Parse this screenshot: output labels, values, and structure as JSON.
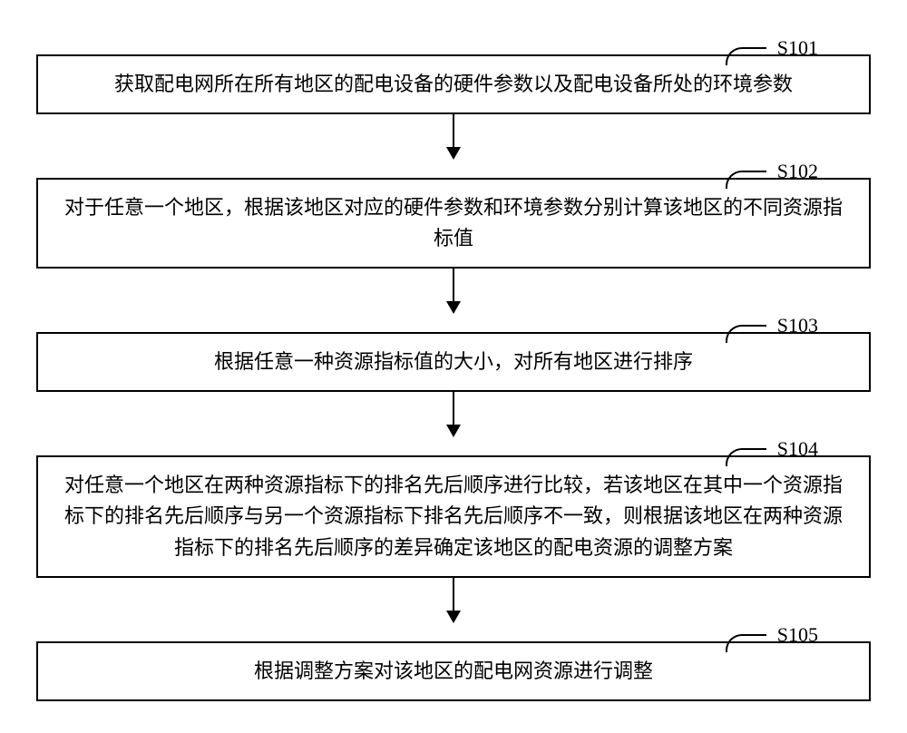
{
  "diagram": {
    "type": "flowchart",
    "direction": "vertical",
    "background_color": "#ffffff",
    "border_color": "#000000",
    "text_color": "#000000",
    "font_family": "SimSun",
    "label_font_family": "Times New Roman",
    "font_size_pt": 16,
    "label_font_size_pt": 16,
    "box_border_width": 2,
    "arrow_line_width": 2,
    "steps": [
      {
        "id": "S101",
        "label": "S101",
        "text": "获取配电网所在所有地区的配电设备的硬件参数以及配电设备所处的环境参数"
      },
      {
        "id": "S102",
        "label": "S102",
        "text": "对于任意一个地区，根据该地区对应的硬件参数和环境参数分别计算该地区的不同资源指标值"
      },
      {
        "id": "S103",
        "label": "S103",
        "text": "根据任意一种资源指标值的大小，对所有地区进行排序"
      },
      {
        "id": "S104",
        "label": "S104",
        "text": "对任意一个地区在两种资源指标下的排名先后顺序进行比较，若该地区在其中一个资源指标下的排名先后顺序与另一个资源指标下排名先后顺序不一致，则根据该地区在两种资源指标下的排名先后顺序的差异确定该地区的配电资源的调整方案"
      },
      {
        "id": "S105",
        "label": "S105",
        "text": "根据调整方案对该地区的配电网资源进行调整"
      }
    ],
    "edges": [
      {
        "from": "S101",
        "to": "S102"
      },
      {
        "from": "S102",
        "to": "S103"
      },
      {
        "from": "S103",
        "to": "S104"
      },
      {
        "from": "S104",
        "to": "S105"
      }
    ]
  }
}
